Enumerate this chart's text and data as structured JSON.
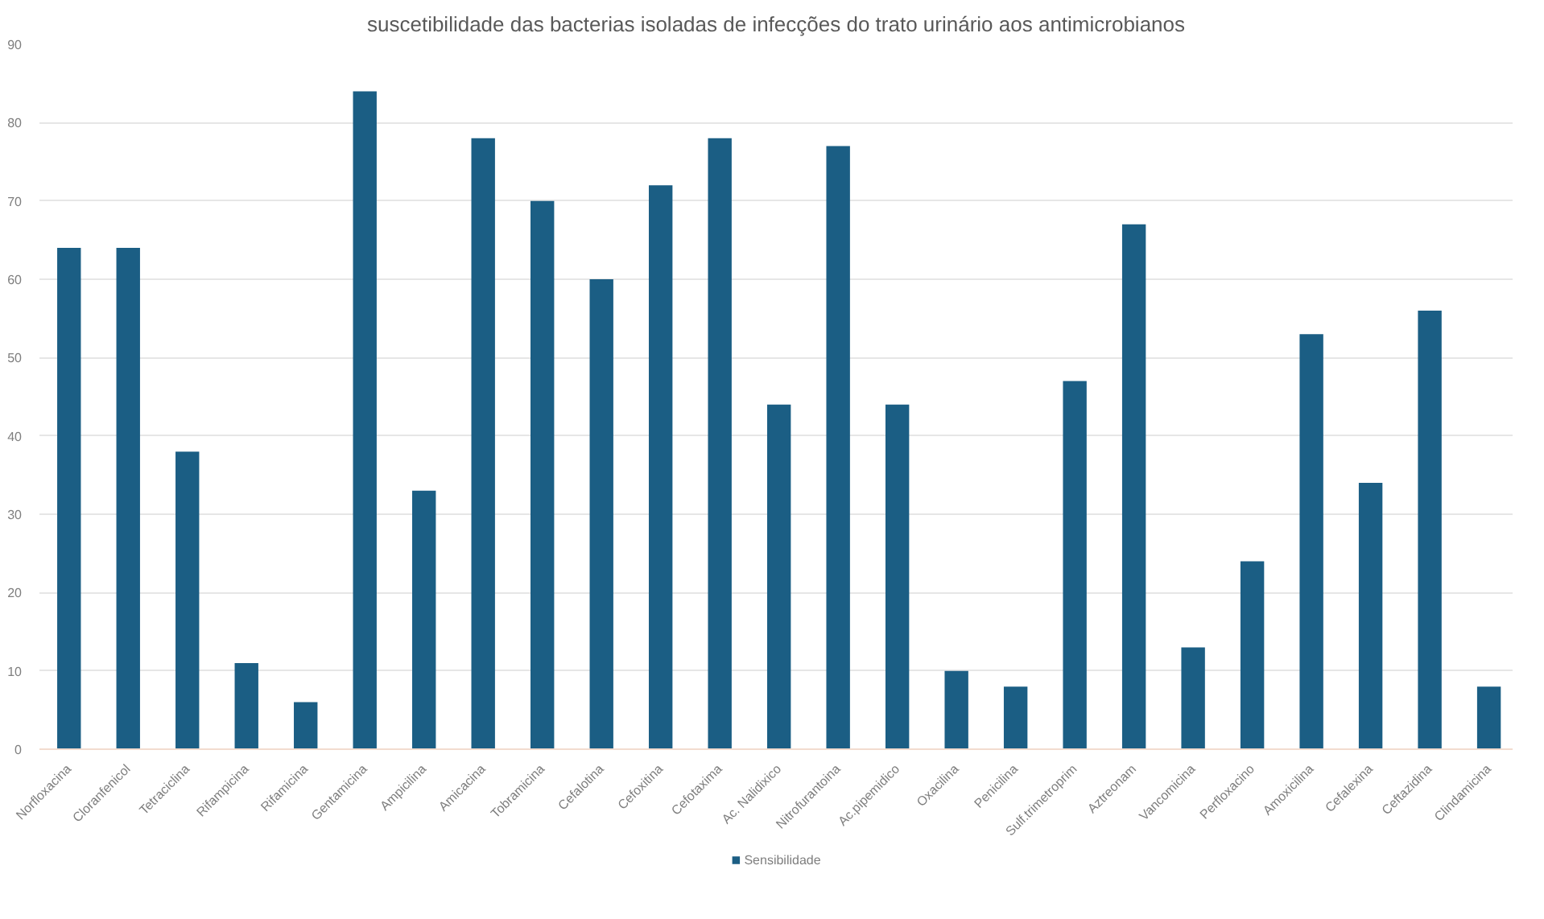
{
  "chart_data": {
    "type": "bar",
    "title": "suscetibilidade das bacterias isoladas de infecções do trato urinário aos antimicrobianos",
    "categories": [
      "Norfloxacina",
      "Cloranfenicol",
      "Tetraciclina",
      "Rifampicina",
      "Rifamicina",
      "Gentamicina",
      "Ampicilina",
      "Amicacina",
      "Tobramicina",
      "Cefalotina",
      "Cefoxitina",
      "Cefotaxima",
      "Ac. Nalidixico",
      "Nitrofurantoina",
      "Ac.pipemidico",
      "Oxacilina",
      "Penicilina",
      "Sulf.trimetroprim",
      "Aztreonam",
      "Vancomicina",
      "Perfloxacino",
      "Amoxicilina",
      "Cefalexina",
      "Ceftazidina",
      "Clindamicina"
    ],
    "series": [
      {
        "name": "Sensibilidade",
        "color": "#1b5e84",
        "values": [
          64,
          64,
          38,
          11,
          6,
          84,
          33,
          78,
          70,
          60,
          72,
          78,
          44,
          77,
          44,
          10,
          8,
          47,
          67,
          13,
          24,
          53,
          34,
          56,
          8
        ]
      }
    ],
    "ylim": [
      0,
      90
    ],
    "yticks": [
      0,
      10,
      20,
      30,
      40,
      50,
      60,
      70,
      80,
      90
    ],
    "grid": "y",
    "legend": "bottom"
  }
}
